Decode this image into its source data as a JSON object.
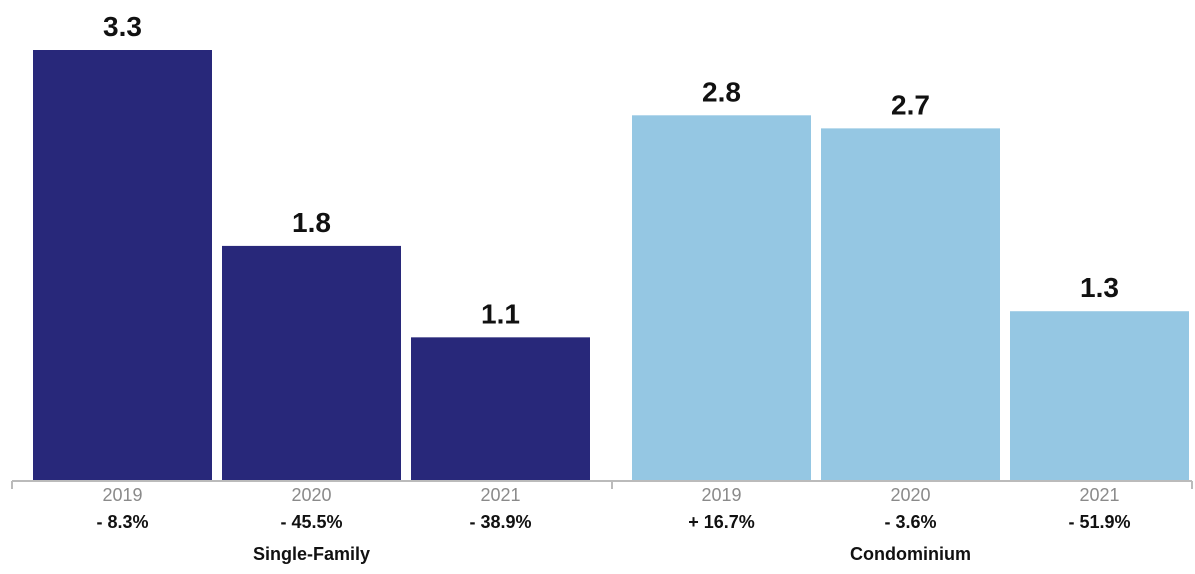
{
  "chart_data": {
    "type": "bar",
    "ylim": [
      0,
      3.5
    ],
    "grid": false,
    "groups": [
      {
        "name": "Single-Family",
        "color": "#28287a",
        "bars": [
          {
            "category": "2019",
            "value": 3.3,
            "value_label": "3.3",
            "change": "- 8.3%"
          },
          {
            "category": "2020",
            "value": 1.8,
            "value_label": "1.8",
            "change": "- 45.5%"
          },
          {
            "category": "2021",
            "value": 1.1,
            "value_label": "1.1",
            "change": "- 38.9%"
          }
        ]
      },
      {
        "name": "Condominium",
        "color": "#95c7e3",
        "bars": [
          {
            "category": "2019",
            "value": 2.8,
            "value_label": "2.8",
            "change": "+ 16.7%"
          },
          {
            "category": "2020",
            "value": 2.7,
            "value_label": "2.7",
            "change": "- 3.6%"
          },
          {
            "category": "2021",
            "value": 1.3,
            "value_label": "1.3",
            "change": "- 51.9%"
          }
        ]
      }
    ],
    "axis_color": "#bbbbbb"
  }
}
